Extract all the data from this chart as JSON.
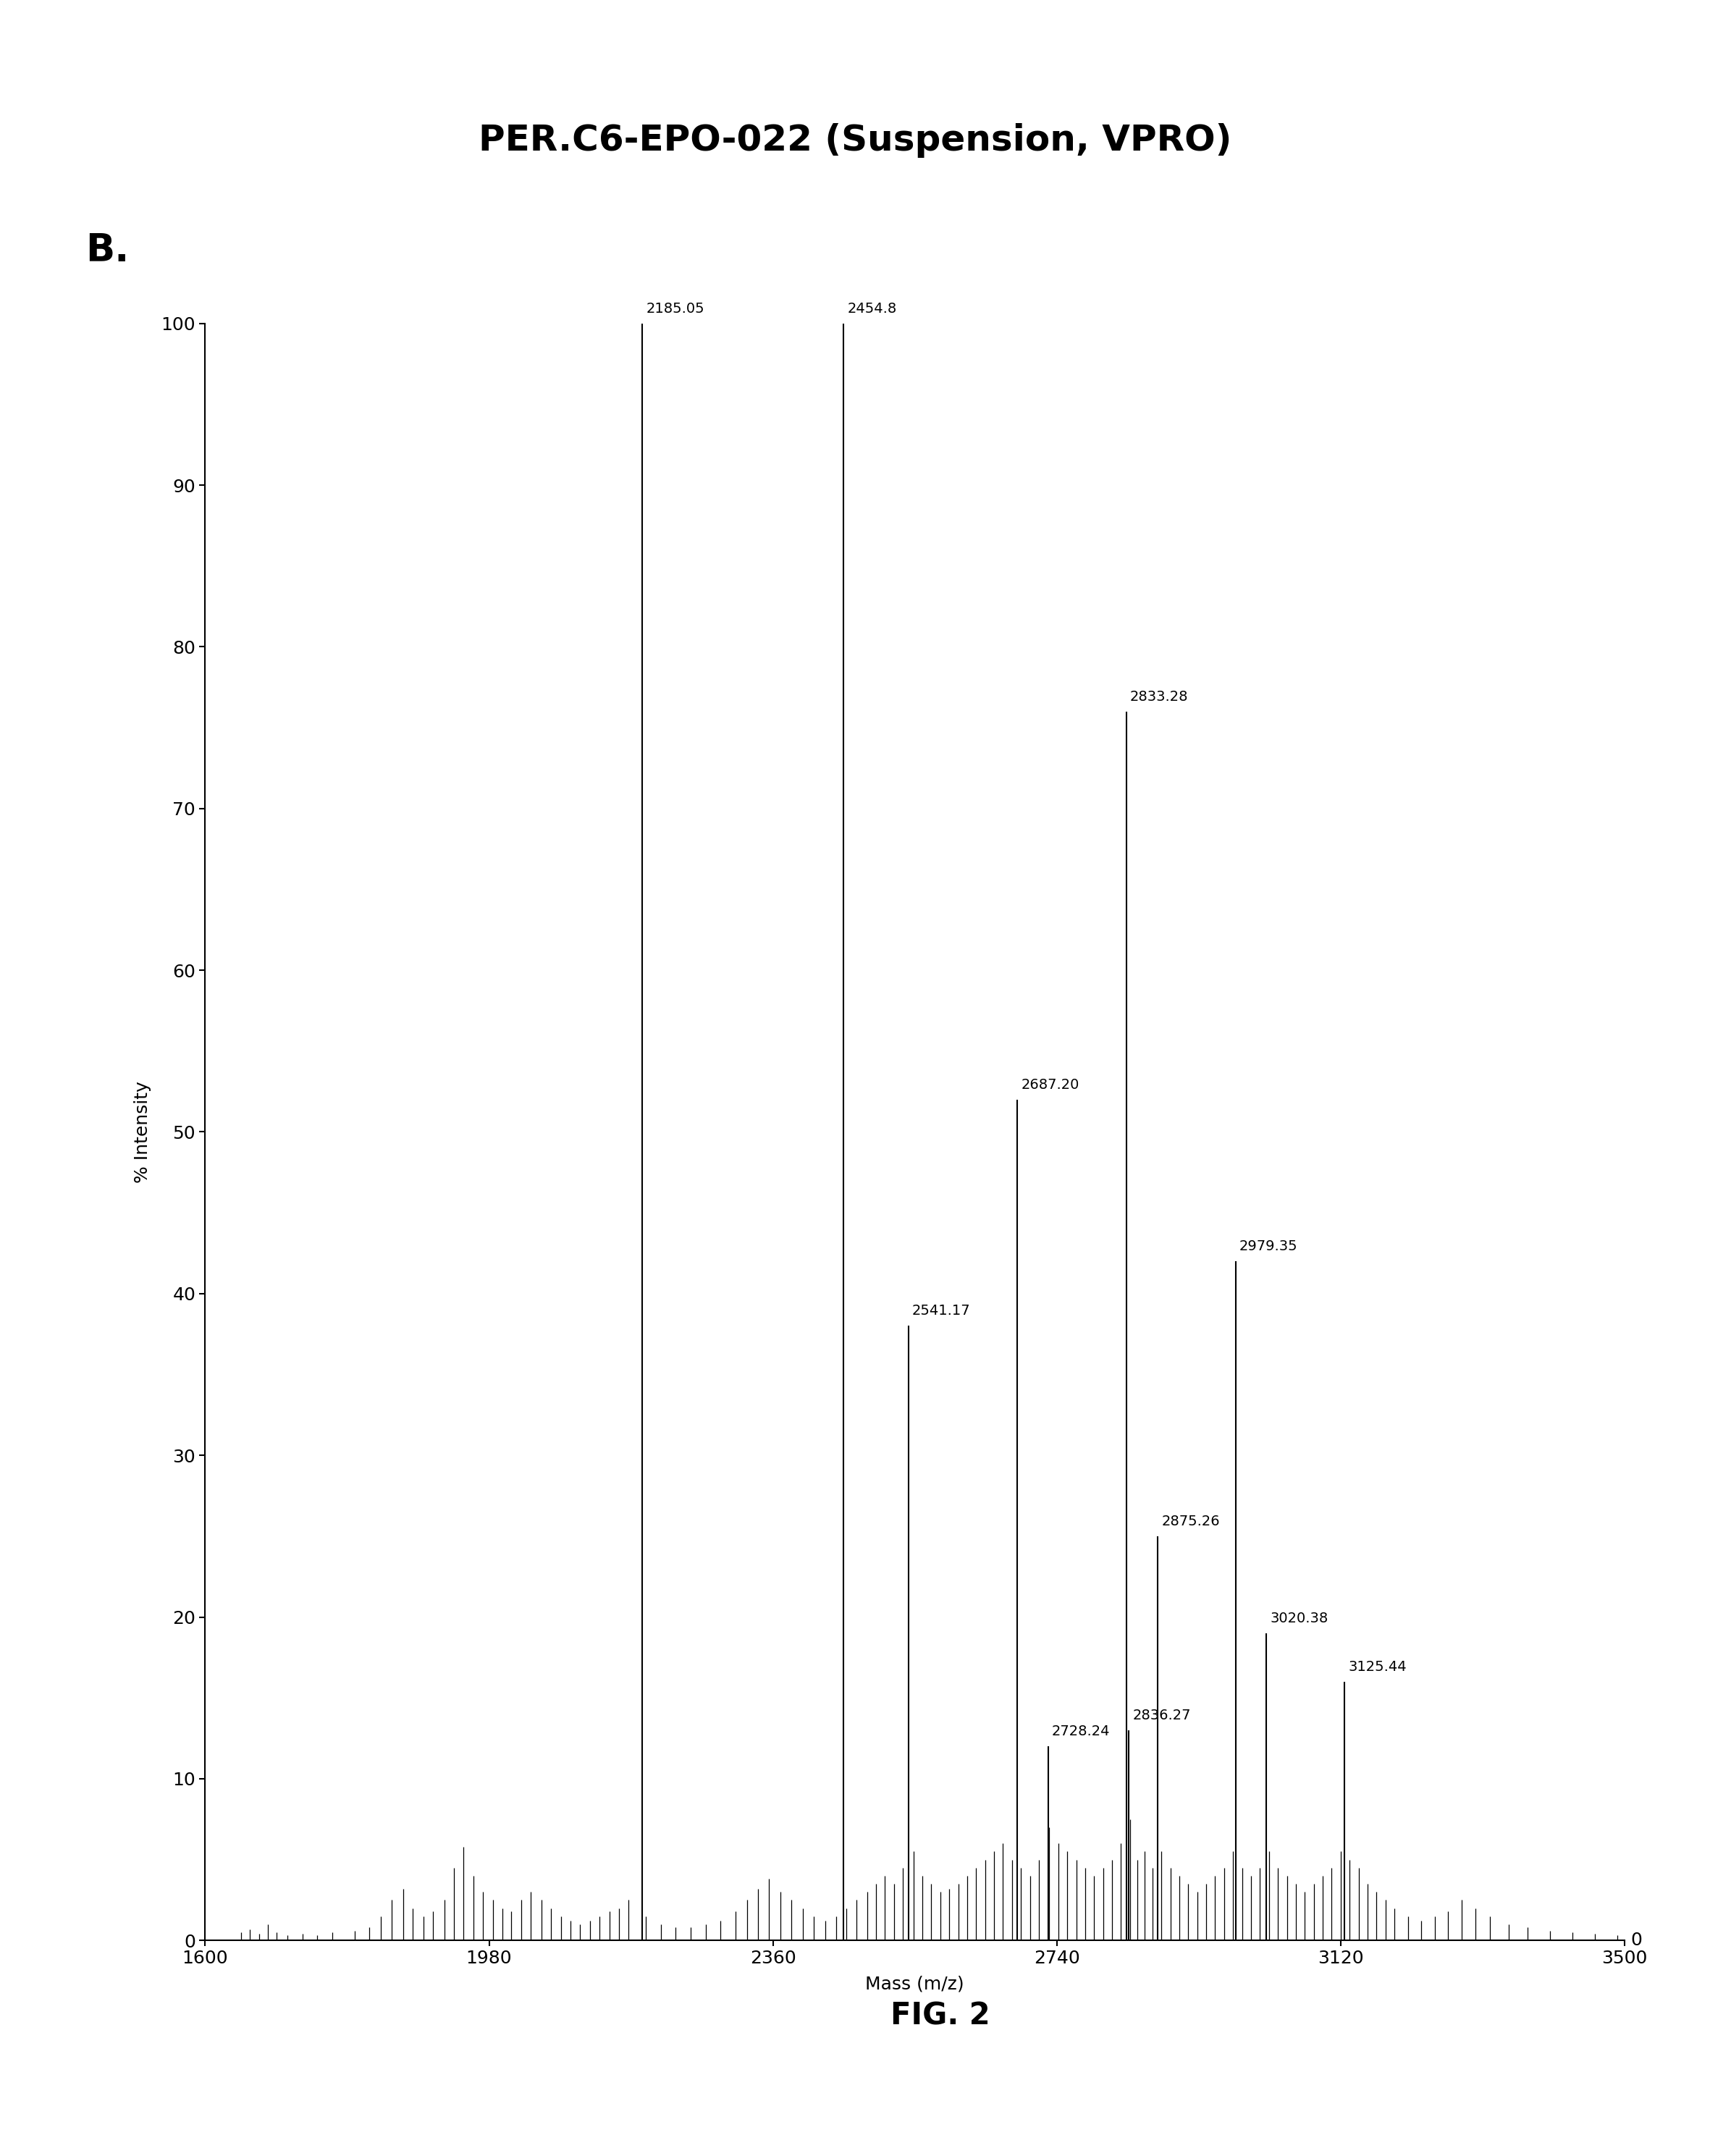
{
  "title": "PER.C6-EPO-022 (Suspension, VPRO)",
  "panel_label": "B.",
  "xlabel": "Mass (m/z)",
  "fig_label": "FIG. 2",
  "ylabel": "% Intensity",
  "xlim": [
    1600,
    3500
  ],
  "ylim": [
    0,
    100
  ],
  "yticks": [
    0,
    10,
    20,
    30,
    40,
    50,
    60,
    70,
    80,
    90,
    100
  ],
  "xticks": [
    1600,
    1980,
    2360,
    2740,
    3120,
    3500
  ],
  "peaks": [
    {
      "mass": 2185.05,
      "intensity": 100.0,
      "label": "2185.05"
    },
    {
      "mass": 2454.8,
      "intensity": 100.0,
      "label": "2454.8"
    },
    {
      "mass": 2833.28,
      "intensity": 76.0,
      "label": "2833.28"
    },
    {
      "mass": 2687.2,
      "intensity": 52.0,
      "label": "2687.20"
    },
    {
      "mass": 2541.17,
      "intensity": 38.0,
      "label": "2541.17"
    },
    {
      "mass": 2979.35,
      "intensity": 42.0,
      "label": "2979.35"
    },
    {
      "mass": 2875.26,
      "intensity": 25.0,
      "label": "2875.26"
    },
    {
      "mass": 3020.38,
      "intensity": 19.0,
      "label": "3020.38"
    },
    {
      "mass": 3125.44,
      "intensity": 16.0,
      "label": "3125.44"
    },
    {
      "mass": 2728.24,
      "intensity": 12.0,
      "label": "2728.24"
    },
    {
      "mass": 2836.27,
      "intensity": 13.0,
      "label": "2836.27"
    }
  ],
  "small_peaks": [
    {
      "mass": 1648,
      "intensity": 0.5
    },
    {
      "mass": 1660,
      "intensity": 0.7
    },
    {
      "mass": 1672,
      "intensity": 0.4
    },
    {
      "mass": 1684,
      "intensity": 1.0
    },
    {
      "mass": 1696,
      "intensity": 0.5
    },
    {
      "mass": 1710,
      "intensity": 0.3
    },
    {
      "mass": 1730,
      "intensity": 0.4
    },
    {
      "mass": 1750,
      "intensity": 0.3
    },
    {
      "mass": 1770,
      "intensity": 0.5
    },
    {
      "mass": 1800,
      "intensity": 0.6
    },
    {
      "mass": 1820,
      "intensity": 0.8
    },
    {
      "mass": 1835,
      "intensity": 1.5
    },
    {
      "mass": 1850,
      "intensity": 2.5
    },
    {
      "mass": 1865,
      "intensity": 3.2
    },
    {
      "mass": 1878,
      "intensity": 2.0
    },
    {
      "mass": 1892,
      "intensity": 1.5
    },
    {
      "mass": 1905,
      "intensity": 1.8
    },
    {
      "mass": 1920,
      "intensity": 2.5
    },
    {
      "mass": 1933,
      "intensity": 4.5
    },
    {
      "mass": 1946,
      "intensity": 5.8
    },
    {
      "mass": 1959,
      "intensity": 4.0
    },
    {
      "mass": 1972,
      "intensity": 3.0
    },
    {
      "mass": 1985,
      "intensity": 2.5
    },
    {
      "mass": 1998,
      "intensity": 2.0
    },
    {
      "mass": 2010,
      "intensity": 1.8
    },
    {
      "mass": 2023,
      "intensity": 2.5
    },
    {
      "mass": 2036,
      "intensity": 3.0
    },
    {
      "mass": 2050,
      "intensity": 2.5
    },
    {
      "mass": 2063,
      "intensity": 2.0
    },
    {
      "mass": 2076,
      "intensity": 1.5
    },
    {
      "mass": 2089,
      "intensity": 1.2
    },
    {
      "mass": 2102,
      "intensity": 1.0
    },
    {
      "mass": 2115,
      "intensity": 1.2
    },
    {
      "mass": 2128,
      "intensity": 1.5
    },
    {
      "mass": 2141,
      "intensity": 1.8
    },
    {
      "mass": 2154,
      "intensity": 2.0
    },
    {
      "mass": 2167,
      "intensity": 2.5
    },
    {
      "mass": 2190,
      "intensity": 1.5
    },
    {
      "mass": 2210,
      "intensity": 1.0
    },
    {
      "mass": 2230,
      "intensity": 0.8
    },
    {
      "mass": 2250,
      "intensity": 0.8
    },
    {
      "mass": 2270,
      "intensity": 1.0
    },
    {
      "mass": 2290,
      "intensity": 1.2
    },
    {
      "mass": 2310,
      "intensity": 1.8
    },
    {
      "mass": 2325,
      "intensity": 2.5
    },
    {
      "mass": 2340,
      "intensity": 3.2
    },
    {
      "mass": 2355,
      "intensity": 3.8
    },
    {
      "mass": 2370,
      "intensity": 3.0
    },
    {
      "mass": 2385,
      "intensity": 2.5
    },
    {
      "mass": 2400,
      "intensity": 2.0
    },
    {
      "mass": 2415,
      "intensity": 1.5
    },
    {
      "mass": 2430,
      "intensity": 1.2
    },
    {
      "mass": 2445,
      "intensity": 1.5
    },
    {
      "mass": 2458,
      "intensity": 2.0
    },
    {
      "mass": 2472,
      "intensity": 2.5
    },
    {
      "mass": 2486,
      "intensity": 3.0
    },
    {
      "mass": 2498,
      "intensity": 3.5
    },
    {
      "mass": 2510,
      "intensity": 4.0
    },
    {
      "mass": 2522,
      "intensity": 3.5
    },
    {
      "mass": 2534,
      "intensity": 4.5
    },
    {
      "mass": 2548,
      "intensity": 5.5
    },
    {
      "mass": 2560,
      "intensity": 4.0
    },
    {
      "mass": 2572,
      "intensity": 3.5
    },
    {
      "mass": 2584,
      "intensity": 3.0
    },
    {
      "mass": 2596,
      "intensity": 3.2
    },
    {
      "mass": 2608,
      "intensity": 3.5
    },
    {
      "mass": 2620,
      "intensity": 4.0
    },
    {
      "mass": 2632,
      "intensity": 4.5
    },
    {
      "mass": 2644,
      "intensity": 5.0
    },
    {
      "mass": 2656,
      "intensity": 5.5
    },
    {
      "mass": 2668,
      "intensity": 6.0
    },
    {
      "mass": 2680,
      "intensity": 5.0
    },
    {
      "mass": 2692,
      "intensity": 4.5
    },
    {
      "mass": 2704,
      "intensity": 4.0
    },
    {
      "mass": 2716,
      "intensity": 5.0
    },
    {
      "mass": 2730,
      "intensity": 7.0
    },
    {
      "mass": 2742,
      "intensity": 6.0
    },
    {
      "mass": 2754,
      "intensity": 5.5
    },
    {
      "mass": 2766,
      "intensity": 5.0
    },
    {
      "mass": 2778,
      "intensity": 4.5
    },
    {
      "mass": 2790,
      "intensity": 4.0
    },
    {
      "mass": 2802,
      "intensity": 4.5
    },
    {
      "mass": 2814,
      "intensity": 5.0
    },
    {
      "mass": 2826,
      "intensity": 6.0
    },
    {
      "mass": 2838,
      "intensity": 7.5
    },
    {
      "mass": 2848,
      "intensity": 5.0
    },
    {
      "mass": 2858,
      "intensity": 5.5
    },
    {
      "mass": 2868,
      "intensity": 4.5
    },
    {
      "mass": 2880,
      "intensity": 5.5
    },
    {
      "mass": 2892,
      "intensity": 4.5
    },
    {
      "mass": 2904,
      "intensity": 4.0
    },
    {
      "mass": 2916,
      "intensity": 3.5
    },
    {
      "mass": 2928,
      "intensity": 3.0
    },
    {
      "mass": 2940,
      "intensity": 3.5
    },
    {
      "mass": 2952,
      "intensity": 4.0
    },
    {
      "mass": 2964,
      "intensity": 4.5
    },
    {
      "mass": 2976,
      "intensity": 5.5
    },
    {
      "mass": 2988,
      "intensity": 4.5
    },
    {
      "mass": 3000,
      "intensity": 4.0
    },
    {
      "mass": 3012,
      "intensity": 4.5
    },
    {
      "mass": 3024,
      "intensity": 5.5
    },
    {
      "mass": 3036,
      "intensity": 4.5
    },
    {
      "mass": 3048,
      "intensity": 4.0
    },
    {
      "mass": 3060,
      "intensity": 3.5
    },
    {
      "mass": 3072,
      "intensity": 3.0
    },
    {
      "mass": 3084,
      "intensity": 3.5
    },
    {
      "mass": 3096,
      "intensity": 4.0
    },
    {
      "mass": 3108,
      "intensity": 4.5
    },
    {
      "mass": 3120,
      "intensity": 5.5
    },
    {
      "mass": 3132,
      "intensity": 5.0
    },
    {
      "mass": 3144,
      "intensity": 4.5
    },
    {
      "mass": 3156,
      "intensity": 3.5
    },
    {
      "mass": 3168,
      "intensity": 3.0
    },
    {
      "mass": 3180,
      "intensity": 2.5
    },
    {
      "mass": 3192,
      "intensity": 2.0
    },
    {
      "mass": 3210,
      "intensity": 1.5
    },
    {
      "mass": 3228,
      "intensity": 1.2
    },
    {
      "mass": 3246,
      "intensity": 1.5
    },
    {
      "mass": 3264,
      "intensity": 1.8
    },
    {
      "mass": 3282,
      "intensity": 2.5
    },
    {
      "mass": 3300,
      "intensity": 2.0
    },
    {
      "mass": 3320,
      "intensity": 1.5
    },
    {
      "mass": 3345,
      "intensity": 1.0
    },
    {
      "mass": 3370,
      "intensity": 0.8
    },
    {
      "mass": 3400,
      "intensity": 0.6
    },
    {
      "mass": 3430,
      "intensity": 0.5
    },
    {
      "mass": 3460,
      "intensity": 0.4
    },
    {
      "mass": 3490,
      "intensity": 0.3
    }
  ],
  "line_color": "#000000",
  "bg_color": "#ffffff",
  "title_fontsize": 36,
  "label_fontsize": 14,
  "tick_fontsize": 18,
  "axis_label_fontsize": 18,
  "fig_label_fontsize": 30,
  "panel_label_fontsize": 38
}
